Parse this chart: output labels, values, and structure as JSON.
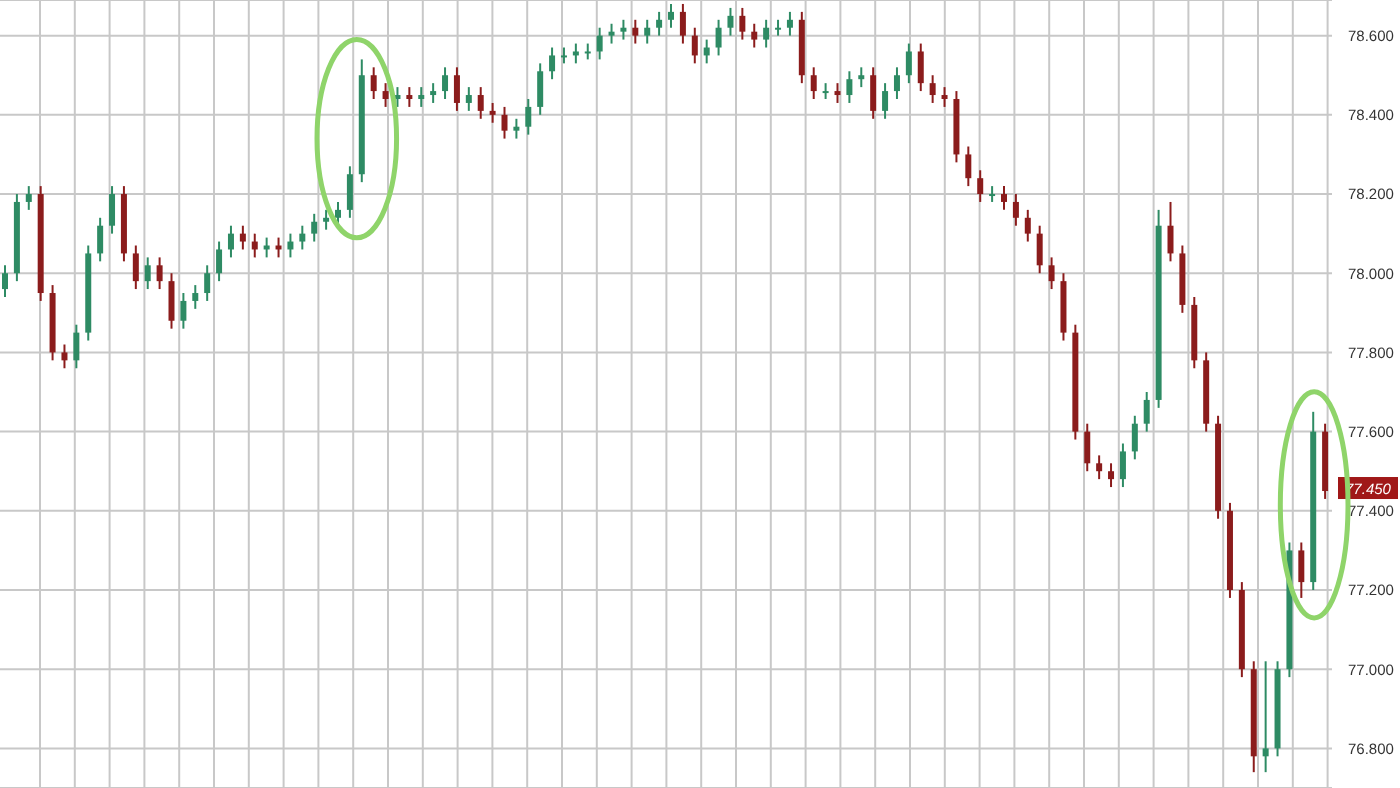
{
  "chart_data": {
    "type": "candlestick",
    "categories": [
      null,
      null,
      null,
      null,
      null,
      null,
      null,
      null,
      null,
      null,
      null,
      null,
      null,
      null,
      null,
      null,
      null,
      null,
      null,
      null,
      null,
      null,
      null,
      null,
      null,
      null,
      null,
      null,
      null,
      null,
      null,
      null,
      null,
      null,
      null,
      null,
      null,
      null,
      null,
      null,
      null,
      null,
      null,
      null,
      null,
      null,
      null,
      null,
      null,
      null,
      null,
      null,
      null,
      null,
      null,
      null,
      null,
      null,
      null,
      null,
      null,
      null,
      null,
      null,
      null,
      null,
      null,
      null,
      null,
      null,
      null,
      null,
      null,
      null,
      null,
      null,
      null,
      null,
      null,
      null,
      null,
      null,
      null,
      null,
      null,
      null,
      null,
      null,
      null,
      null,
      null,
      null,
      null,
      null,
      null,
      null,
      null,
      null,
      null,
      null,
      null,
      null,
      null,
      null,
      null,
      null,
      null,
      null,
      null,
      null,
      null,
      null
    ],
    "ohlc": [
      [
        77.96,
        78.02,
        77.94,
        78.0
      ],
      [
        78.0,
        78.2,
        77.98,
        78.18
      ],
      [
        78.18,
        78.22,
        78.16,
        78.2
      ],
      [
        78.2,
        78.22,
        77.93,
        77.95
      ],
      [
        77.95,
        77.97,
        77.78,
        77.8
      ],
      [
        77.8,
        77.82,
        77.76,
        77.78
      ],
      [
        77.78,
        77.87,
        77.76,
        77.85
      ],
      [
        77.85,
        78.07,
        77.83,
        78.05
      ],
      [
        78.05,
        78.14,
        78.03,
        78.12
      ],
      [
        78.12,
        78.22,
        78.1,
        78.2
      ],
      [
        78.2,
        78.22,
        78.03,
        78.05
      ],
      [
        78.05,
        78.07,
        77.96,
        77.98
      ],
      [
        77.98,
        78.04,
        77.96,
        78.02
      ],
      [
        78.02,
        78.04,
        77.96,
        77.98
      ],
      [
        77.98,
        78.0,
        77.86,
        77.88
      ],
      [
        77.88,
        77.95,
        77.86,
        77.93
      ],
      [
        77.93,
        77.97,
        77.91,
        77.95
      ],
      [
        77.95,
        78.02,
        77.93,
        78.0
      ],
      [
        78.0,
        78.08,
        77.98,
        78.06
      ],
      [
        78.06,
        78.12,
        78.04,
        78.1
      ],
      [
        78.1,
        78.12,
        78.06,
        78.08
      ],
      [
        78.08,
        78.1,
        78.04,
        78.06
      ],
      [
        78.06,
        78.09,
        78.04,
        78.07
      ],
      [
        78.07,
        78.09,
        78.04,
        78.06
      ],
      [
        78.06,
        78.1,
        78.04,
        78.08
      ],
      [
        78.08,
        78.12,
        78.06,
        78.1
      ],
      [
        78.1,
        78.15,
        78.08,
        78.13
      ],
      [
        78.13,
        78.16,
        78.11,
        78.14
      ],
      [
        78.14,
        78.18,
        78.12,
        78.16
      ],
      [
        78.16,
        78.27,
        78.14,
        78.25
      ],
      [
        78.25,
        78.54,
        78.23,
        78.5
      ],
      [
        78.5,
        78.52,
        78.44,
        78.46
      ],
      [
        78.46,
        78.48,
        78.42,
        78.44
      ],
      [
        78.44,
        78.47,
        78.42,
        78.45
      ],
      [
        78.45,
        78.47,
        78.42,
        78.44
      ],
      [
        78.44,
        78.47,
        78.42,
        78.45
      ],
      [
        78.45,
        78.48,
        78.43,
        78.46
      ],
      [
        78.46,
        78.52,
        78.44,
        78.5
      ],
      [
        78.5,
        78.52,
        78.41,
        78.43
      ],
      [
        78.43,
        78.47,
        78.41,
        78.45
      ],
      [
        78.45,
        78.47,
        78.39,
        78.41
      ],
      [
        78.41,
        78.43,
        78.38,
        78.4
      ],
      [
        78.4,
        78.42,
        78.34,
        78.36
      ],
      [
        78.36,
        78.39,
        78.34,
        78.37
      ],
      [
        78.37,
        78.44,
        78.35,
        78.42
      ],
      [
        78.42,
        78.53,
        78.4,
        78.51
      ],
      [
        78.51,
        78.57,
        78.49,
        78.55
      ],
      [
        78.55,
        78.57,
        78.53,
        78.55
      ],
      [
        78.55,
        78.58,
        78.53,
        78.56
      ],
      [
        78.56,
        78.58,
        78.54,
        78.56
      ],
      [
        78.56,
        78.62,
        78.54,
        78.6
      ],
      [
        78.6,
        78.63,
        78.58,
        78.61
      ],
      [
        78.61,
        78.64,
        78.59,
        78.62
      ],
      [
        78.62,
        78.64,
        78.58,
        78.6
      ],
      [
        78.6,
        78.64,
        78.58,
        78.62
      ],
      [
        78.62,
        78.66,
        78.6,
        78.64
      ],
      [
        78.64,
        78.68,
        78.62,
        78.66
      ],
      [
        78.66,
        78.68,
        78.58,
        78.6
      ],
      [
        78.6,
        78.62,
        78.53,
        78.55
      ],
      [
        78.55,
        78.59,
        78.53,
        78.57
      ],
      [
        78.57,
        78.64,
        78.55,
        78.62
      ],
      [
        78.62,
        78.67,
        78.6,
        78.65
      ],
      [
        78.65,
        78.67,
        78.59,
        78.61
      ],
      [
        78.61,
        78.63,
        78.57,
        78.59
      ],
      [
        78.59,
        78.64,
        78.57,
        78.62
      ],
      [
        78.62,
        78.64,
        78.6,
        78.62
      ],
      [
        78.62,
        78.66,
        78.6,
        78.64
      ],
      [
        78.64,
        78.66,
        78.48,
        78.5
      ],
      [
        78.5,
        78.52,
        78.44,
        78.46
      ],
      [
        78.46,
        78.48,
        78.44,
        78.46
      ],
      [
        78.46,
        78.48,
        78.43,
        78.45
      ],
      [
        78.45,
        78.51,
        78.43,
        78.49
      ],
      [
        78.49,
        78.52,
        78.47,
        78.5
      ],
      [
        78.5,
        78.52,
        78.39,
        78.41
      ],
      [
        78.41,
        78.48,
        78.39,
        78.46
      ],
      [
        78.46,
        78.52,
        78.44,
        78.5
      ],
      [
        78.5,
        78.58,
        78.48,
        78.56
      ],
      [
        78.56,
        78.58,
        78.46,
        78.48
      ],
      [
        78.48,
        78.5,
        78.43,
        78.45
      ],
      [
        78.45,
        78.47,
        78.42,
        78.44
      ],
      [
        78.44,
        78.46,
        78.28,
        78.3
      ],
      [
        78.3,
        78.32,
        78.22,
        78.24
      ],
      [
        78.24,
        78.26,
        78.18,
        78.2
      ],
      [
        78.2,
        78.22,
        78.18,
        78.2
      ],
      [
        78.2,
        78.22,
        78.16,
        78.18
      ],
      [
        78.18,
        78.2,
        78.12,
        78.14
      ],
      [
        78.14,
        78.16,
        78.08,
        78.1
      ],
      [
        78.1,
        78.12,
        78.0,
        78.02
      ],
      [
        78.02,
        78.04,
        77.96,
        77.98
      ],
      [
        77.98,
        78.0,
        77.83,
        77.85
      ],
      [
        77.85,
        77.87,
        77.58,
        77.6
      ],
      [
        77.6,
        77.62,
        77.5,
        77.52
      ],
      [
        77.52,
        77.54,
        77.48,
        77.5
      ],
      [
        77.5,
        77.52,
        77.46,
        77.48
      ],
      [
        77.48,
        77.57,
        77.46,
        77.55
      ],
      [
        77.55,
        77.64,
        77.53,
        77.62
      ],
      [
        77.62,
        77.7,
        77.6,
        77.68
      ],
      [
        77.68,
        78.16,
        77.66,
        78.12
      ],
      [
        78.12,
        78.18,
        78.03,
        78.05
      ],
      [
        78.05,
        78.07,
        77.9,
        77.92
      ],
      [
        77.92,
        77.94,
        77.76,
        77.78
      ],
      [
        77.78,
        77.8,
        77.6,
        77.62
      ],
      [
        77.62,
        77.64,
        77.38,
        77.4
      ],
      [
        77.4,
        77.42,
        77.18,
        77.2
      ],
      [
        77.2,
        77.22,
        76.98,
        77.0
      ],
      [
        77.0,
        77.02,
        76.74,
        76.78
      ],
      [
        76.78,
        77.02,
        76.74,
        76.8
      ],
      [
        76.8,
        77.02,
        76.78,
        77.0
      ],
      [
        77.0,
        77.32,
        76.98,
        77.3
      ],
      [
        77.3,
        77.32,
        77.18,
        77.22
      ],
      [
        77.22,
        77.65,
        77.2,
        77.6
      ],
      [
        77.6,
        77.62,
        77.43,
        77.45
      ]
    ],
    "colors": [
      "#2e8b64",
      "#2e8b64",
      "#2e8b64",
      "#8b1c1c",
      "#8b1c1c",
      "#8b1c1c",
      "#2e8b64",
      "#2e8b64",
      "#2e8b64",
      "#2e8b64",
      "#8b1c1c",
      "#8b1c1c",
      "#2e8b64",
      "#8b1c1c",
      "#8b1c1c",
      "#2e8b64",
      "#2e8b64",
      "#2e8b64",
      "#2e8b64",
      "#2e8b64",
      "#8b1c1c",
      "#8b1c1c",
      "#2e8b64",
      "#8b1c1c",
      "#2e8b64",
      "#2e8b64",
      "#2e8b64",
      "#2e8b64",
      "#2e8b64",
      "#2e8b64",
      "#2e8b64",
      "#8b1c1c",
      "#8b1c1c",
      "#2e8b64",
      "#8b1c1c",
      "#2e8b64",
      "#2e8b64",
      "#2e8b64",
      "#8b1c1c",
      "#2e8b64",
      "#8b1c1c",
      "#8b1c1c",
      "#8b1c1c",
      "#2e8b64",
      "#2e8b64",
      "#2e8b64",
      "#2e8b64",
      "#2e8b64",
      "#2e8b64",
      "#2e8b64",
      "#2e8b64",
      "#2e8b64",
      "#2e8b64",
      "#8b1c1c",
      "#2e8b64",
      "#2e8b64",
      "#2e8b64",
      "#8b1c1c",
      "#8b1c1c",
      "#2e8b64",
      "#2e8b64",
      "#2e8b64",
      "#8b1c1c",
      "#8b1c1c",
      "#2e8b64",
      "#2e8b64",
      "#2e8b64",
      "#8b1c1c",
      "#8b1c1c",
      "#2e8b64",
      "#8b1c1c",
      "#2e8b64",
      "#2e8b64",
      "#8b1c1c",
      "#2e8b64",
      "#2e8b64",
      "#2e8b64",
      "#8b1c1c",
      "#8b1c1c",
      "#8b1c1c",
      "#8b1c1c",
      "#8b1c1c",
      "#8b1c1c",
      "#2e8b64",
      "#8b1c1c",
      "#8b1c1c",
      "#8b1c1c",
      "#8b1c1c",
      "#8b1c1c",
      "#8b1c1c",
      "#8b1c1c",
      "#8b1c1c",
      "#8b1c1c",
      "#8b1c1c",
      "#2e8b64",
      "#2e8b64",
      "#2e8b64",
      "#2e8b64",
      "#8b1c1c",
      "#8b1c1c",
      "#8b1c1c",
      "#8b1c1c",
      "#8b1c1c",
      "#8b1c1c",
      "#8b1c1c",
      "#8b1c1c",
      "#2e8b64",
      "#2e8b64",
      "#2e8b64",
      "#8b1c1c",
      "#2e8b64",
      "#8b1c1c"
    ],
    "ylim": [
      76.7,
      78.69
    ],
    "yticks": [
      {
        "value": 76.8,
        "label": "76.800"
      },
      {
        "value": 77,
        "label": "77.000"
      },
      {
        "value": 77.2,
        "label": "77.200"
      },
      {
        "value": 77.4,
        "label": "77.400"
      },
      {
        "value": 77.6,
        "label": "77.600"
      },
      {
        "value": 77.8,
        "label": "77.800"
      },
      {
        "value": 78,
        "label": "78.000"
      },
      {
        "value": 78.2,
        "label": "78.200"
      },
      {
        "value": 78.4,
        "label": "78.400"
      },
      {
        "value": 78.6,
        "label": "78.600"
      }
    ],
    "annotations": [
      {
        "text": "77.450",
        "y": 77.45
      }
    ],
    "grid": true,
    "tick_labels": "y"
  }
}
